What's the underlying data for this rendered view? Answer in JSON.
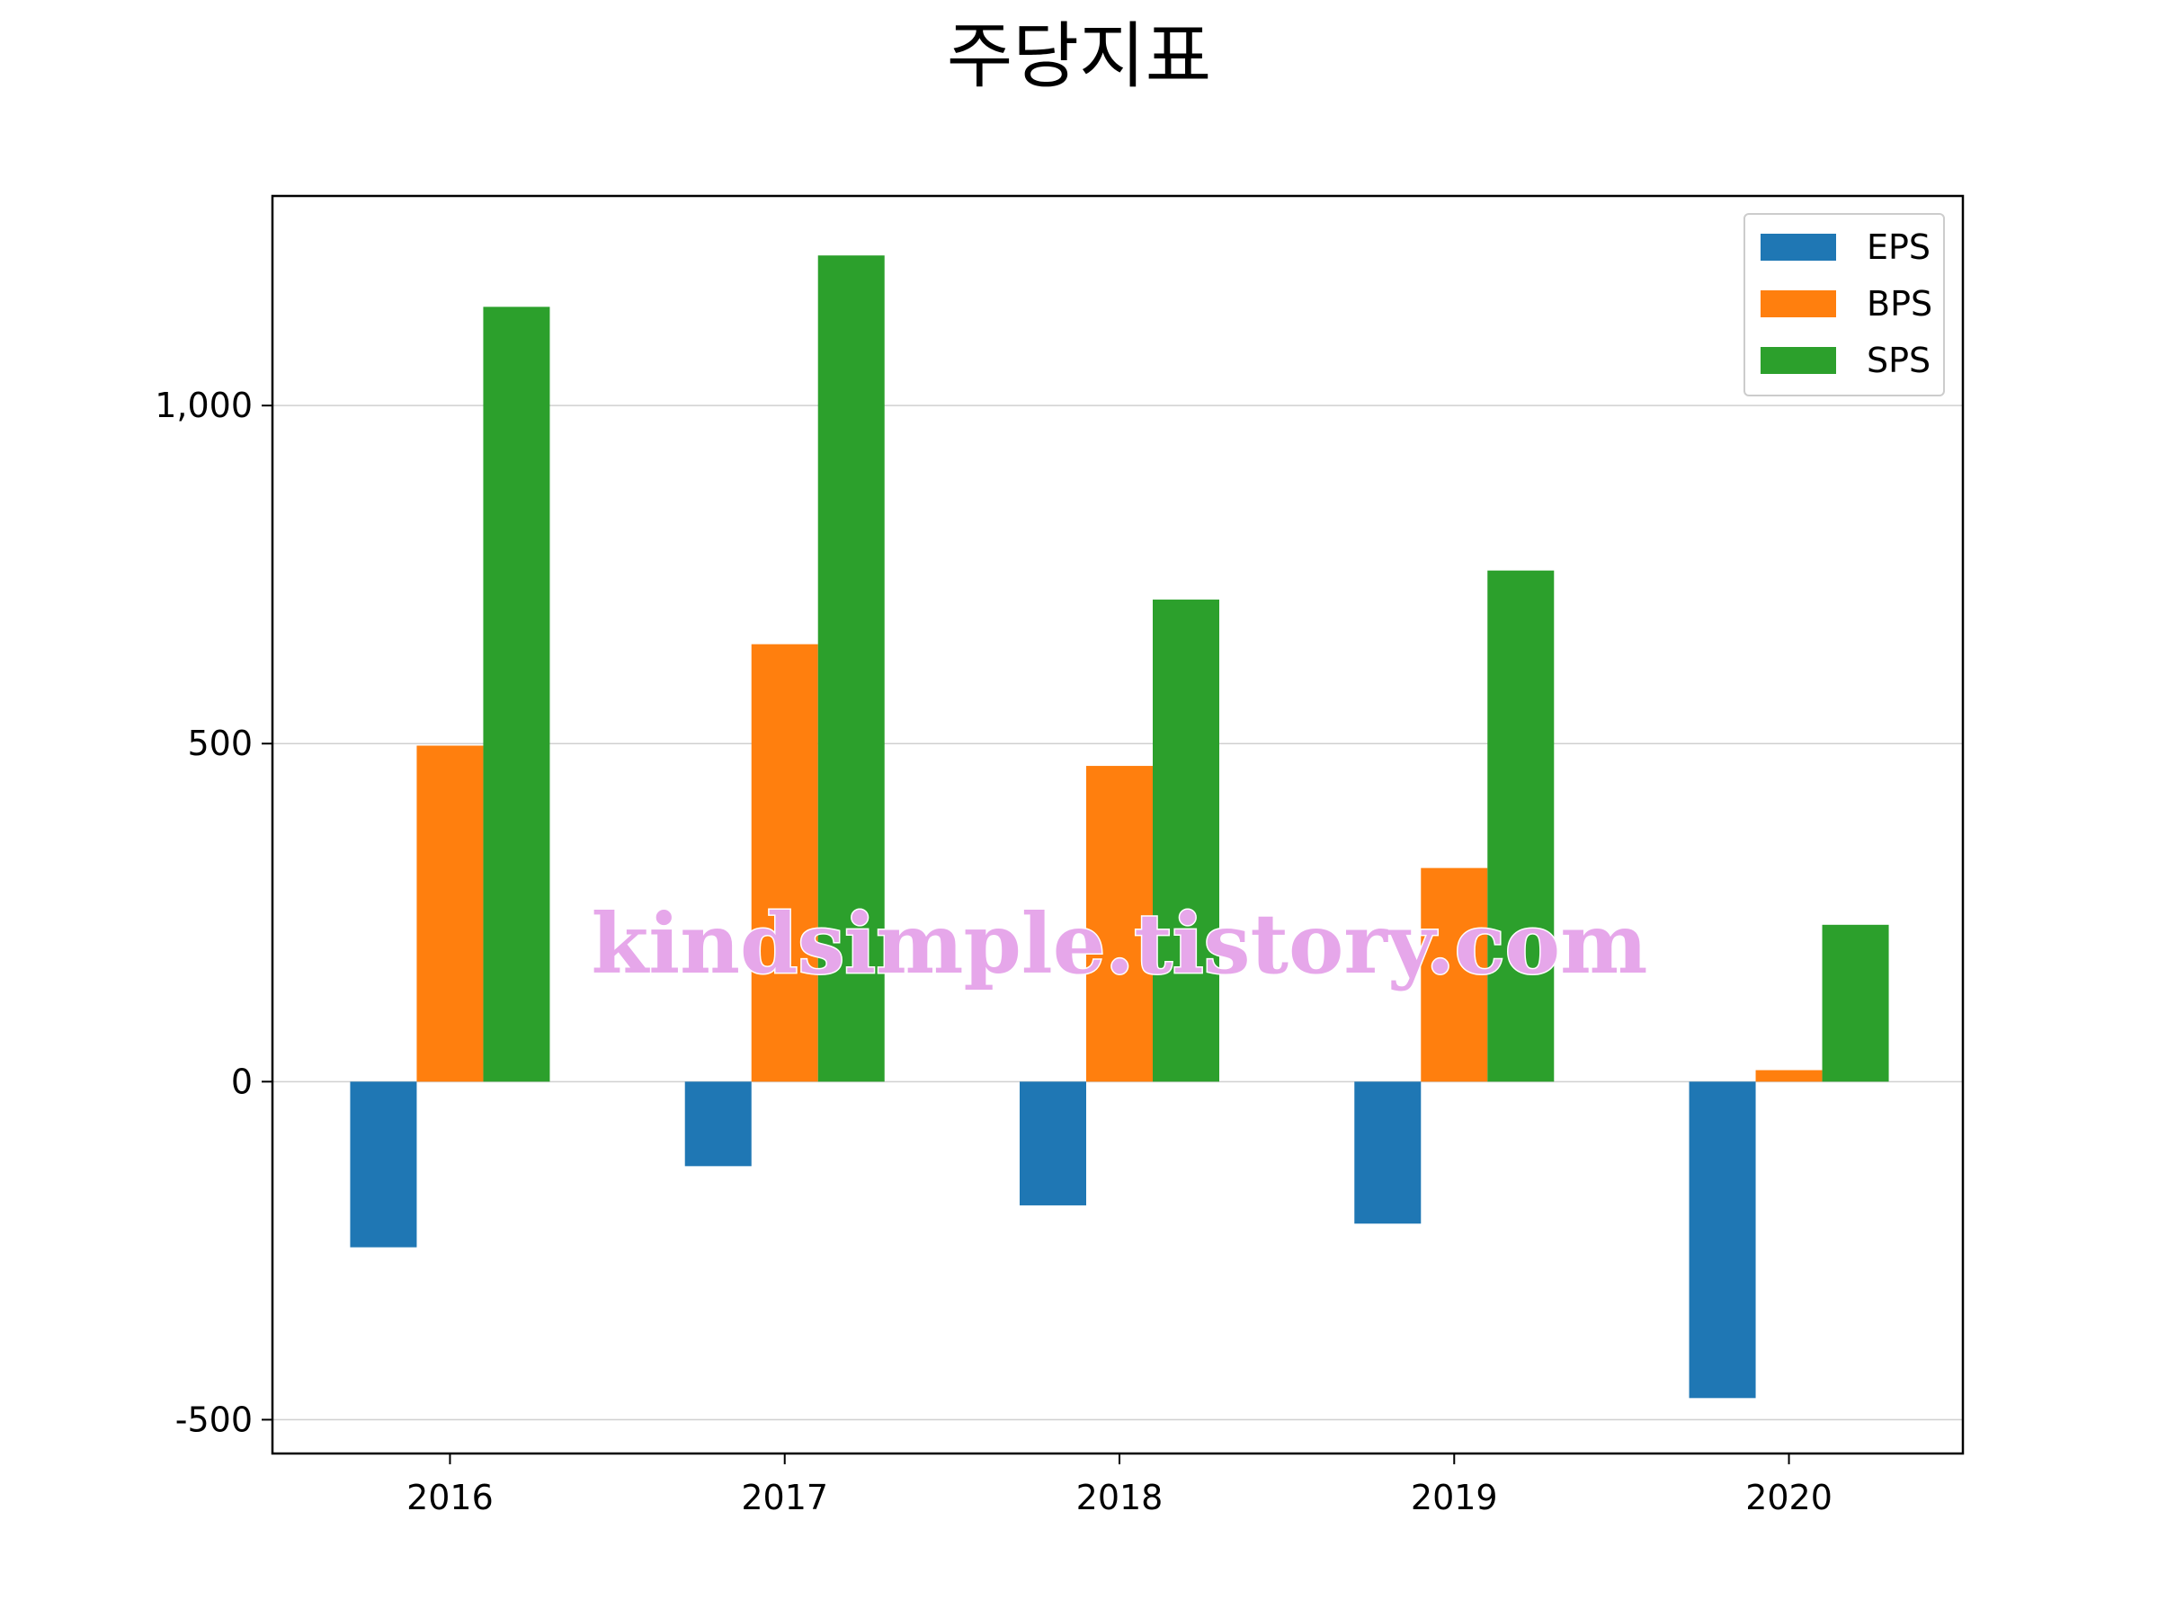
{
  "chart_data": {
    "type": "bar",
    "title": "주당지표",
    "categories": [
      "2016",
      "2017",
      "2018",
      "2019",
      "2020"
    ],
    "series": [
      {
        "name": "EPS",
        "color": "#1f77b4",
        "values": [
          -245,
          -125,
          -183,
          -210,
          -468
        ]
      },
      {
        "name": "BPS",
        "color": "#ff7f0e",
        "values": [
          497,
          647,
          467,
          316,
          17
        ]
      },
      {
        "name": "SPS",
        "color": "#2ca02c",
        "values": [
          1146,
          1222,
          713,
          756,
          232
        ]
      }
    ],
    "yticks": [
      -500,
      0,
      500,
      1000
    ],
    "ytick_labels": [
      "-500",
      "0",
      "500",
      "1,000"
    ],
    "ylim": [
      -550,
      1310
    ],
    "grid": "y",
    "legend_position": "top-right",
    "xlabel": "",
    "ylabel": ""
  },
  "watermark": "kindsimple.tistory.com"
}
